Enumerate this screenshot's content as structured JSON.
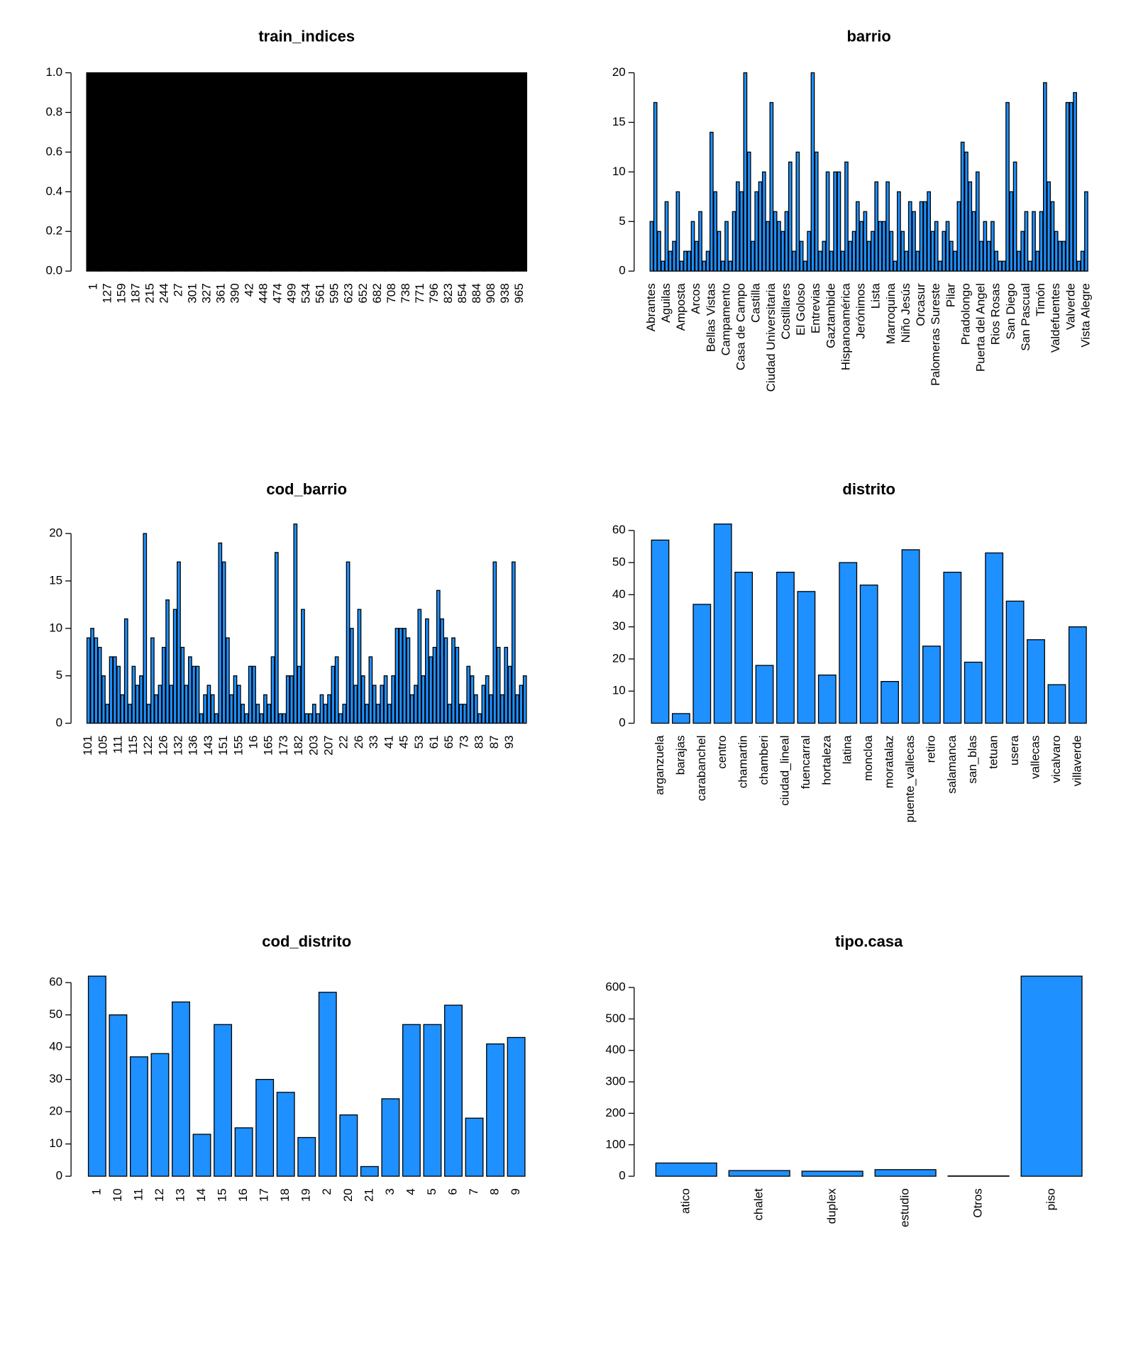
{
  "chart_data": [
    {
      "type": "bar",
      "title": "train_indices",
      "color": "#000000",
      "categories": [
        "1",
        "127",
        "159",
        "187",
        "215",
        "244",
        "27",
        "301",
        "327",
        "361",
        "390",
        "42",
        "448",
        "474",
        "499",
        "534",
        "561",
        "595",
        "623",
        "652",
        "682",
        "708",
        "738",
        "771",
        "796",
        "823",
        "854",
        "884",
        "908",
        "938",
        "965"
      ],
      "values": [
        1,
        1,
        1,
        1,
        1,
        1,
        1,
        1,
        1,
        1,
        1,
        1,
        1,
        1,
        1,
        1,
        1,
        1,
        1,
        1,
        1,
        1,
        1,
        1,
        1,
        1,
        1,
        1,
        1,
        1,
        1
      ],
      "ylim": [
        0,
        1
      ],
      "yticks": [
        {
          "value": 0,
          "label": "0.0"
        },
        {
          "value": 0.2,
          "label": "0.2"
        },
        {
          "value": 0.4,
          "label": "0.4"
        },
        {
          "value": 0.6,
          "label": "0.6"
        },
        {
          "value": 0.8,
          "label": "0.8"
        },
        {
          "value": 1,
          "label": "1.0"
        }
      ]
    },
    {
      "type": "bar",
      "title": "barrio",
      "color": "#1e90ff",
      "categories": [
        "Abrantes",
        null,
        null,
        null,
        "Aguilas",
        null,
        null,
        null,
        "Amposta",
        null,
        null,
        null,
        "Arcos",
        null,
        null,
        null,
        "Bellas Vistas",
        null,
        null,
        null,
        "Campamento",
        null,
        null,
        null,
        "Casa de Campo",
        null,
        null,
        null,
        "Castilla",
        null,
        null,
        null,
        "Ciudad Universitaria",
        null,
        null,
        null,
        "Costillares",
        null,
        null,
        null,
        "El Goloso",
        null,
        null,
        null,
        "Entrevias",
        null,
        null,
        null,
        "Gaztambide",
        null,
        null,
        null,
        "Hispanoamérica",
        null,
        null,
        null,
        "Jerónimos",
        null,
        null,
        null,
        "Lista",
        null,
        null,
        null,
        "Marroquina",
        null,
        null,
        null,
        "Niño Jesús",
        null,
        null,
        null,
        "Orcasur",
        null,
        null,
        null,
        "Palomeras Sureste",
        null,
        null,
        null,
        "Pilar",
        null,
        null,
        null,
        "Pradolongo",
        null,
        null,
        null,
        "Puerta del Angel",
        null,
        null,
        null,
        "Rios Rosas",
        null,
        null,
        null,
        "San Diego",
        null,
        null,
        null,
        "San Pascual",
        null,
        null,
        null,
        "Timón",
        null,
        null,
        null,
        "Valdefuentes",
        null,
        null,
        null,
        "Valverde",
        null,
        null,
        null,
        "Vista Alegre"
      ],
      "values": [
        5,
        17,
        4,
        1,
        7,
        2,
        3,
        8,
        1,
        2,
        2,
        5,
        3,
        6,
        1,
        2,
        14,
        8,
        4,
        1,
        5,
        1,
        6,
        9,
        8,
        20,
        12,
        3,
        8,
        9,
        10,
        5,
        17,
        6,
        5,
        4,
        6,
        11,
        2,
        12,
        3,
        1,
        4,
        20,
        12,
        2,
        3,
        10,
        2,
        10,
        10,
        2,
        11,
        3,
        4,
        7,
        5,
        6,
        3,
        4,
        9,
        5,
        5,
        9,
        4,
        1,
        8,
        4,
        2,
        7,
        6,
        2,
        7,
        7,
        8,
        4,
        5,
        1,
        4,
        5,
        3,
        2,
        7,
        13,
        12,
        9,
        6,
        10,
        3,
        5,
        3,
        5,
        2,
        1,
        1,
        17,
        8,
        11,
        2,
        4,
        6,
        1,
        6,
        2,
        6,
        19,
        9,
        7,
        4,
        3,
        3,
        17,
        17,
        18,
        1,
        2,
        8
      ],
      "ylim": [
        0,
        20
      ],
      "yticks": [
        0,
        5,
        10,
        15,
        20
      ]
    },
    {
      "type": "bar",
      "title": "cod_barrio",
      "color": "#1e90ff",
      "categories": [
        "101",
        null,
        null,
        null,
        "105",
        null,
        null,
        null,
        "111",
        null,
        null,
        null,
        "115",
        null,
        null,
        null,
        "122",
        null,
        null,
        null,
        "126",
        null,
        null,
        null,
        "132",
        null,
        null,
        null,
        "136",
        null,
        null,
        null,
        "143",
        null,
        null,
        null,
        "151",
        null,
        null,
        null,
        "155",
        null,
        null,
        null,
        "16",
        null,
        null,
        null,
        "165",
        null,
        null,
        null,
        "173",
        null,
        null,
        null,
        "182",
        null,
        null,
        null,
        "203",
        null,
        null,
        null,
        "207",
        null,
        null,
        null,
        "22",
        null,
        null,
        null,
        "26",
        null,
        null,
        null,
        "33",
        null,
        null,
        null,
        "41",
        null,
        null,
        null,
        "45",
        null,
        null,
        null,
        "53",
        null,
        null,
        null,
        "61",
        null,
        null,
        null,
        "65",
        null,
        null,
        null,
        "73",
        null,
        null,
        null,
        "83",
        null,
        null,
        null,
        "87",
        null,
        null,
        null,
        "93",
        null,
        null,
        null,
        null
      ],
      "values": [
        9,
        10,
        9,
        8,
        5,
        2,
        7,
        7,
        6,
        3,
        11,
        2,
        6,
        4,
        5,
        20,
        2,
        9,
        3,
        4,
        8,
        13,
        4,
        12,
        17,
        8,
        4,
        7,
        6,
        6,
        1,
        3,
        4,
        3,
        1,
        19,
        17,
        9,
        3,
        5,
        4,
        2,
        1,
        6,
        6,
        2,
        1,
        3,
        2,
        7,
        18,
        1,
        1,
        5,
        5,
        21,
        6,
        12,
        1,
        1,
        2,
        1,
        3,
        2,
        3,
        6,
        7,
        1,
        2,
        17,
        10,
        4,
        12,
        5,
        2,
        7,
        4,
        2,
        4,
        5,
        2,
        5,
        10,
        10,
        10,
        9,
        3,
        4,
        12,
        5,
        11,
        7,
        8,
        14,
        11,
        9,
        2,
        9,
        8,
        2,
        2,
        6,
        5,
        3,
        1,
        4,
        5,
        3,
        17,
        8,
        3,
        8,
        6,
        17,
        3,
        4,
        5
      ],
      "ylim": [
        0,
        21
      ],
      "yticks": [
        0,
        5,
        10,
        15,
        20
      ]
    },
    {
      "type": "bar",
      "title": "distrito",
      "color": "#1e90ff",
      "categories": [
        "arganzuela",
        "barajas",
        "carabanchel",
        "centro",
        "chamartin",
        "chamberi",
        "ciudad_lineal",
        "fuencarral",
        "hortaleza",
        "latina",
        "moncloa",
        "moratalaz",
        "puente_vallecas",
        "retiro",
        "salamanca",
        "san_blas",
        "tetuan",
        "usera",
        "vallecas",
        "vicalvaro",
        "villaverde"
      ],
      "values": [
        57,
        3,
        37,
        62,
        47,
        18,
        47,
        41,
        15,
        50,
        43,
        13,
        54,
        24,
        47,
        19,
        53,
        38,
        26,
        12,
        30
      ],
      "ylim": [
        0,
        62
      ],
      "yticks": [
        0,
        10,
        20,
        30,
        40,
        50,
        60
      ]
    },
    {
      "type": "bar",
      "title": "cod_distrito",
      "color": "#1e90ff",
      "categories": [
        "1",
        "10",
        "11",
        "12",
        "13",
        "14",
        "15",
        "16",
        "17",
        "18",
        "19",
        "2",
        "20",
        "21",
        "3",
        "4",
        "5",
        "6",
        "7",
        "8",
        "9"
      ],
      "values": [
        62,
        50,
        37,
        38,
        54,
        13,
        47,
        15,
        30,
        26,
        12,
        57,
        19,
        3,
        24,
        47,
        47,
        53,
        18,
        41,
        43
      ],
      "ylim": [
        0,
        62
      ],
      "yticks": [
        0,
        10,
        20,
        30,
        40,
        50,
        60
      ]
    },
    {
      "type": "bar",
      "title": "tipo.casa",
      "color": "#1e90ff",
      "categories": [
        "atico",
        "chalet",
        "duplex",
        "estudio",
        "Otros",
        "piso"
      ],
      "values": [
        42,
        18,
        16,
        21,
        1,
        636
      ],
      "ylim": [
        0,
        636
      ],
      "yticks": [
        0,
        100,
        200,
        300,
        400,
        500,
        600
      ]
    }
  ]
}
